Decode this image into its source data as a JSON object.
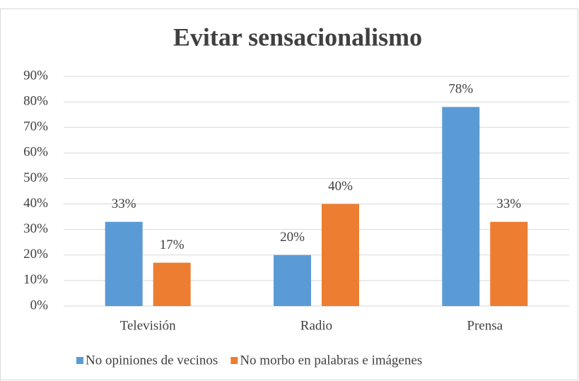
{
  "chart_data": {
    "type": "bar",
    "title": "Evitar sensacionalismo",
    "categories": [
      "Televisión",
      "Radio",
      "Prensa"
    ],
    "series": [
      {
        "name": "No opiniones de vecinos",
        "color": "#5b9bd5",
        "values": [
          33,
          20,
          78
        ],
        "value_labels": [
          "33%",
          "20%",
          "78%"
        ]
      },
      {
        "name": "No morbo en palabras e imágenes",
        "color": "#ed7d31",
        "values": [
          17,
          40,
          33
        ],
        "value_labels": [
          "17%",
          "40%",
          "33%"
        ]
      }
    ],
    "ylim": [
      0,
      90
    ],
    "yticks": [
      {
        "value": 0,
        "label": "0%"
      },
      {
        "value": 10,
        "label": "10%"
      },
      {
        "value": 20,
        "label": "20%"
      },
      {
        "value": 30,
        "label": "30%"
      },
      {
        "value": 40,
        "label": "40%"
      },
      {
        "value": 50,
        "label": "50%"
      },
      {
        "value": 60,
        "label": "60%"
      },
      {
        "value": 70,
        "label": "70%"
      },
      {
        "value": 80,
        "label": "80%"
      },
      {
        "value": 90,
        "label": "90%"
      }
    ],
    "grid": true,
    "legend": "bottom"
  }
}
